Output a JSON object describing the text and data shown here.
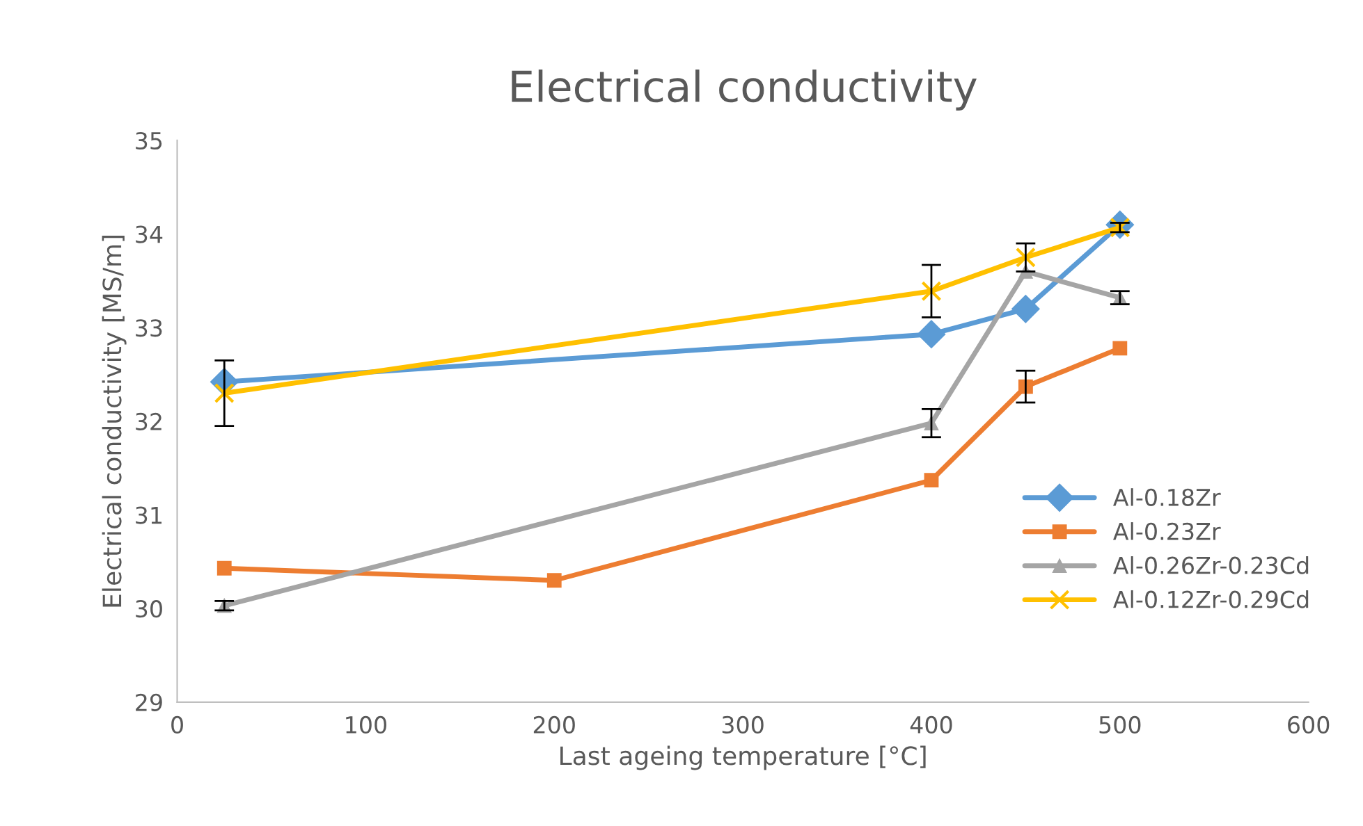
{
  "chart_data": {
    "type": "line",
    "title": "Electrical conductivity",
    "xlabel": "Last ageing temperature [°C]",
    "ylabel": "Electrical conductivity [MS/m]",
    "xlim": [
      0,
      600
    ],
    "xticks": [
      0,
      100,
      200,
      300,
      400,
      500,
      600
    ],
    "ylim": [
      29,
      35
    ],
    "yticks": [
      29,
      30,
      31,
      32,
      33,
      34,
      35
    ],
    "grid": false,
    "legend": "right",
    "series": [
      {
        "name": "Al-0.18Zr",
        "color": "#5b9bd5",
        "marker": "diamond",
        "x": [
          25,
          400,
          450,
          500
        ],
        "values": [
          32.42,
          32.93,
          33.2,
          34.1
        ]
      },
      {
        "name": "Al-0.23Zr",
        "color": "#ed7d31",
        "marker": "square",
        "x": [
          25,
          200,
          400,
          450,
          500
        ],
        "values": [
          30.43,
          30.3,
          31.37,
          32.37,
          32.78
        ],
        "errors": [
          null,
          null,
          null,
          0.17,
          null
        ]
      },
      {
        "name": "Al-0.26Zr-0.23Cd",
        "color": "#a5a5a5",
        "marker": "triangle",
        "x": [
          25,
          400,
          450,
          500
        ],
        "values": [
          30.03,
          31.98,
          33.6,
          33.32
        ],
        "errors": [
          0.05,
          0.15,
          null,
          0.07
        ]
      },
      {
        "name": "Al-0.12Zr-0.29Cd",
        "color": "#ffc000",
        "marker": "cross",
        "x": [
          25,
          400,
          450,
          500
        ],
        "values": [
          32.3,
          33.39,
          33.75,
          34.07
        ],
        "errors": [
          0.35,
          0.28,
          0.15,
          0.05
        ]
      }
    ]
  }
}
